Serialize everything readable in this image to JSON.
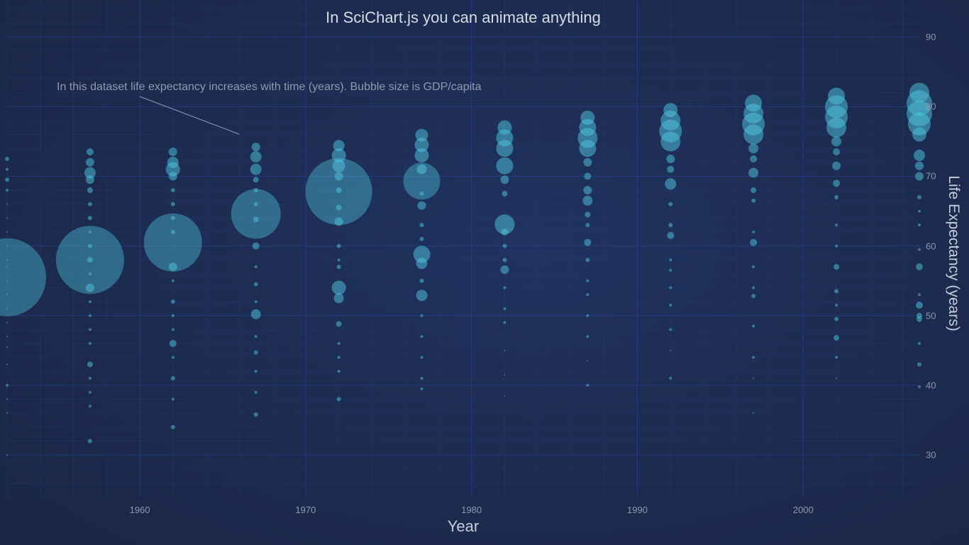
{
  "chart_data": {
    "type": "scatter",
    "subtype": "bubble",
    "title": "In SciChart.js you can animate anything",
    "xlabel": "Year",
    "ylabel": "Life Expectancy (years)",
    "xlim": [
      1952,
      2007
    ],
    "ylim": [
      24,
      95.3
    ],
    "x_ticks": [
      "1960",
      "1970",
      "1980",
      "1990",
      "2000"
    ],
    "y_ticks": [
      "90",
      "80",
      "70",
      "60",
      "50",
      "40",
      "30"
    ],
    "grid": true,
    "annotation": "In this dataset life expectancy increases with time (years). Bubble size is GDP/capita",
    "bubble_color": "#50C8E2",
    "series": [
      {
        "year": 1952,
        "points": [
          [
            55.5,
            55
          ],
          [
            72.5,
            3
          ],
          [
            71,
            2
          ],
          [
            69.5,
            3
          ],
          [
            68,
            2
          ],
          [
            66,
            1
          ],
          [
            64,
            1
          ],
          [
            62,
            1
          ],
          [
            60,
            1
          ],
          [
            58,
            1
          ],
          [
            57,
            1
          ],
          [
            55,
            1
          ],
          [
            53,
            1
          ],
          [
            51,
            1
          ],
          [
            49,
            1
          ],
          [
            47,
            1
          ],
          [
            45.5,
            1
          ],
          [
            43,
            1
          ],
          [
            40,
            2
          ],
          [
            38,
            1
          ],
          [
            36,
            1
          ],
          [
            30,
            1
          ]
        ]
      },
      {
        "year": 1957,
        "points": [
          [
            58,
            48
          ],
          [
            73.5,
            5
          ],
          [
            72,
            6
          ],
          [
            70.5,
            8
          ],
          [
            69.5,
            6
          ],
          [
            68,
            4
          ],
          [
            66,
            3
          ],
          [
            64,
            3
          ],
          [
            62,
            2
          ],
          [
            60,
            3
          ],
          [
            58,
            4
          ],
          [
            56,
            2
          ],
          [
            54,
            6
          ],
          [
            52,
            2
          ],
          [
            50,
            2
          ],
          [
            48,
            2
          ],
          [
            46,
            2
          ],
          [
            43,
            4
          ],
          [
            41,
            2
          ],
          [
            39,
            2
          ],
          [
            37,
            2
          ],
          [
            32,
            3
          ]
        ]
      },
      {
        "year": 1962,
        "points": [
          [
            60.5,
            41
          ],
          [
            73.5,
            6
          ],
          [
            72,
            8
          ],
          [
            71,
            10
          ],
          [
            70,
            6
          ],
          [
            68,
            3
          ],
          [
            66,
            3
          ],
          [
            64,
            3
          ],
          [
            62,
            3
          ],
          [
            57,
            6
          ],
          [
            55,
            2
          ],
          [
            52,
            3
          ],
          [
            50,
            2
          ],
          [
            48,
            2
          ],
          [
            46,
            5
          ],
          [
            44,
            2
          ],
          [
            41,
            3
          ],
          [
            38,
            2
          ],
          [
            34,
            3
          ]
        ]
      },
      {
        "year": 1967,
        "points": [
          [
            64.6,
            35
          ],
          [
            74.2,
            6
          ],
          [
            72.8,
            8
          ],
          [
            71,
            8
          ],
          [
            69.5,
            4
          ],
          [
            68,
            3
          ],
          [
            66,
            3
          ],
          [
            63.8,
            4
          ],
          [
            60,
            5
          ],
          [
            57,
            2
          ],
          [
            54.5,
            3
          ],
          [
            52,
            2
          ],
          [
            50.2,
            7
          ],
          [
            47,
            2
          ],
          [
            44.7,
            3
          ],
          [
            42,
            2
          ],
          [
            39,
            2
          ],
          [
            35.8,
            3
          ]
        ]
      },
      {
        "year": 1972,
        "points": [
          [
            67.8,
            47
          ],
          [
            74.4,
            8
          ],
          [
            73,
            10
          ],
          [
            71.5,
            9
          ],
          [
            70,
            6
          ],
          [
            68,
            4
          ],
          [
            65.5,
            4
          ],
          [
            63.5,
            6
          ],
          [
            60,
            3
          ],
          [
            58,
            2
          ],
          [
            57,
            3
          ],
          [
            54,
            10
          ],
          [
            52.5,
            7
          ],
          [
            48.8,
            4
          ],
          [
            46,
            2
          ],
          [
            44,
            2
          ],
          [
            42,
            2
          ],
          [
            38,
            3
          ]
        ]
      },
      {
        "year": 1977,
        "points": [
          [
            69.3,
            26
          ],
          [
            75.9,
            9
          ],
          [
            74.5,
            10
          ],
          [
            73,
            10
          ],
          [
            71,
            7
          ],
          [
            67.5,
            3
          ],
          [
            65.8,
            6
          ],
          [
            63,
            3
          ],
          [
            61,
            3
          ],
          [
            58.8,
            12
          ],
          [
            57.5,
            8
          ],
          [
            55,
            3
          ],
          [
            52.9,
            8
          ],
          [
            50,
            2
          ],
          [
            47,
            2
          ],
          [
            44,
            2
          ],
          [
            41,
            2
          ],
          [
            39.5,
            2
          ]
        ]
      },
      {
        "year": 1982,
        "points": [
          [
            63.1,
            14
          ],
          [
            77,
            10
          ],
          [
            75.5,
            12
          ],
          [
            74,
            12
          ],
          [
            71.5,
            12
          ],
          [
            69.5,
            6
          ],
          [
            67.5,
            4
          ],
          [
            62,
            5
          ],
          [
            60,
            3
          ],
          [
            58,
            3
          ],
          [
            56.6,
            6
          ],
          [
            54,
            2
          ],
          [
            51,
            2
          ],
          [
            49,
            2
          ],
          [
            45,
            1
          ],
          [
            41.5,
            1
          ],
          [
            38.5,
            1
          ]
        ]
      },
      {
        "year": 1987,
        "points": [
          [
            78.4,
            10
          ],
          [
            77,
            12
          ],
          [
            75.5,
            14
          ],
          [
            74,
            12
          ],
          [
            72,
            6
          ],
          [
            70,
            5
          ],
          [
            68,
            6
          ],
          [
            66.5,
            7
          ],
          [
            64.5,
            4
          ],
          [
            63,
            3
          ],
          [
            60.5,
            5
          ],
          [
            58,
            3
          ],
          [
            55,
            2
          ],
          [
            53,
            2
          ],
          [
            50,
            2
          ],
          [
            47,
            2
          ],
          [
            43.5,
            1
          ],
          [
            40,
            2
          ]
        ]
      },
      {
        "year": 1992,
        "points": [
          [
            79.5,
            10
          ],
          [
            78,
            14
          ],
          [
            76.5,
            16
          ],
          [
            75,
            14
          ],
          [
            72.5,
            6
          ],
          [
            71,
            5
          ],
          [
            68.9,
            8
          ],
          [
            66,
            3
          ],
          [
            63,
            3
          ],
          [
            61.5,
            5
          ],
          [
            58,
            2
          ],
          [
            56.5,
            2
          ],
          [
            54,
            2
          ],
          [
            51.5,
            2
          ],
          [
            48,
            2
          ],
          [
            45,
            1
          ],
          [
            41,
            2
          ]
        ]
      },
      {
        "year": 1997,
        "points": [
          [
            80.5,
            12
          ],
          [
            79,
            14
          ],
          [
            77.5,
            16
          ],
          [
            76,
            14
          ],
          [
            74,
            7
          ],
          [
            72.5,
            5
          ],
          [
            70.5,
            7
          ],
          [
            68,
            4
          ],
          [
            66.5,
            3
          ],
          [
            62,
            2
          ],
          [
            60.5,
            5
          ],
          [
            57,
            2
          ],
          [
            54,
            2
          ],
          [
            52.8,
            3
          ],
          [
            48.5,
            2
          ],
          [
            44,
            2
          ],
          [
            41,
            1
          ],
          [
            36,
            1
          ]
        ]
      },
      {
        "year": 2002,
        "points": [
          [
            81.5,
            12
          ],
          [
            80,
            16
          ],
          [
            78.5,
            16
          ],
          [
            77,
            14
          ],
          [
            75,
            7
          ],
          [
            73.5,
            5
          ],
          [
            71.5,
            6
          ],
          [
            69,
            5
          ],
          [
            67,
            3
          ],
          [
            63,
            2
          ],
          [
            60,
            2
          ],
          [
            57,
            4
          ],
          [
            53.5,
            3
          ],
          [
            51.5,
            2
          ],
          [
            49.5,
            3
          ],
          [
            46.8,
            4
          ],
          [
            44,
            2
          ],
          [
            41,
            1
          ]
        ]
      },
      {
        "year": 2007,
        "points": [
          [
            82,
            14
          ],
          [
            80.5,
            18
          ],
          [
            79,
            18
          ],
          [
            77.5,
            16
          ],
          [
            76,
            10
          ],
          [
            73,
            8
          ],
          [
            71.5,
            6
          ],
          [
            70,
            6
          ],
          [
            67,
            3
          ],
          [
            65,
            2
          ],
          [
            63,
            2
          ],
          [
            59.5,
            2
          ],
          [
            57,
            5
          ],
          [
            53,
            2
          ],
          [
            51.5,
            5
          ],
          [
            50,
            4
          ],
          [
            49.5,
            4
          ],
          [
            46,
            2
          ],
          [
            43,
            3
          ],
          [
            39.8,
            2
          ]
        ]
      }
    ]
  }
}
